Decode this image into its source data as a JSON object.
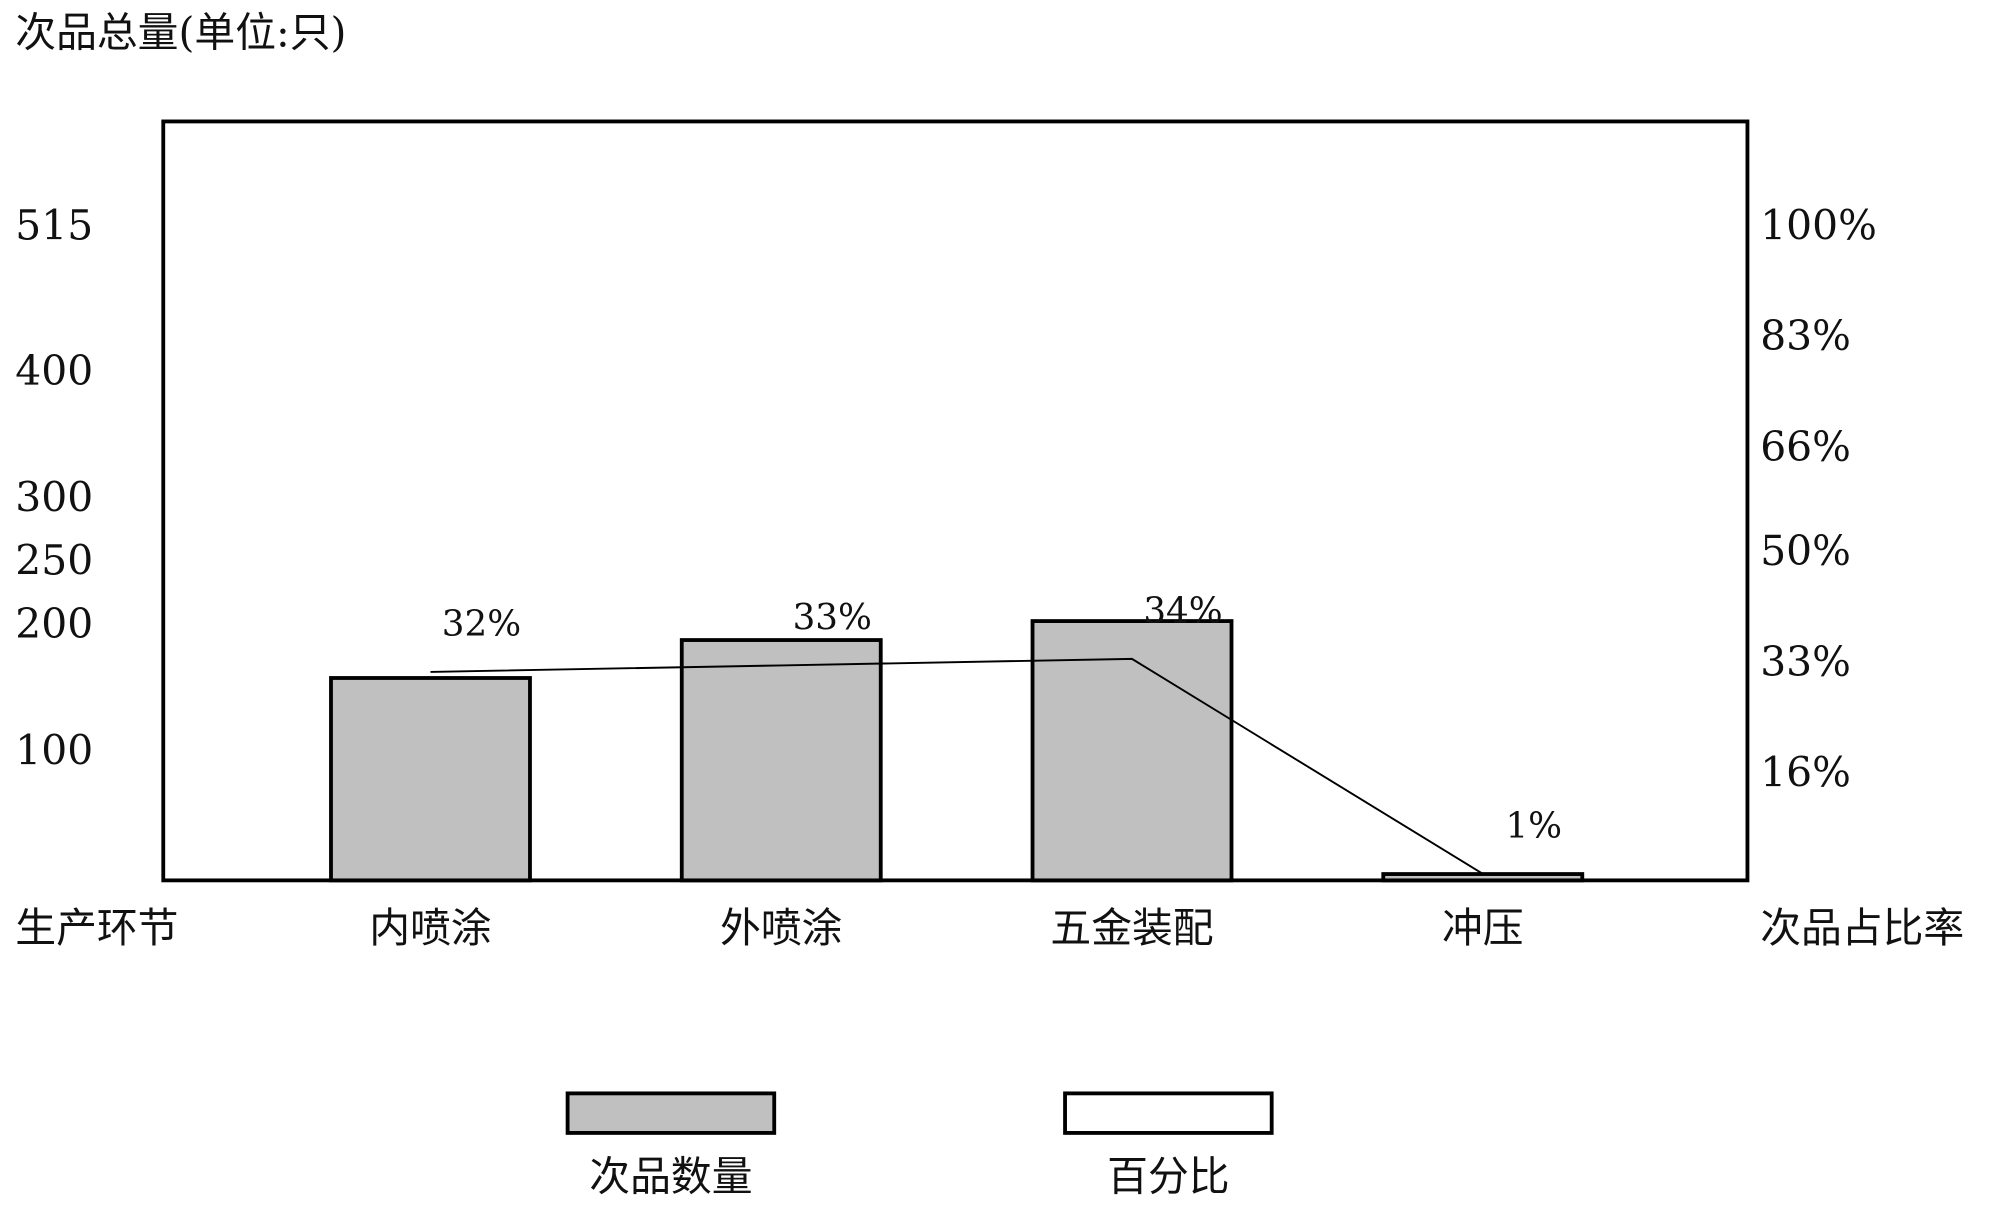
{
  "chart_data": {
    "type": "bar",
    "y_label": "次品总量(单位:只)",
    "x_label": "生产环节",
    "y2_label": "次品占比率",
    "categories": [
      "内喷涂",
      "外喷涂",
      "五金装配",
      "冲压"
    ],
    "series": [
      {
        "name": "次品数量",
        "type": "bar",
        "color": "#c0c0c0",
        "values": [
          160,
          190,
          205,
          5
        ]
      },
      {
        "name": "百分比",
        "type": "line",
        "axis": "y2",
        "color": "#000000",
        "values": [
          32,
          33,
          34,
          1
        ],
        "value_labels": [
          "32%",
          "33%",
          "34%",
          "1%"
        ]
      }
    ],
    "ylim": [
      0,
      600
    ],
    "yticks": [
      100,
      200,
      250,
      300,
      400,
      515
    ],
    "y2lim": [
      0,
      116.5
    ],
    "y2ticks": [
      {
        "value": 16,
        "label": "16%"
      },
      {
        "value": 33,
        "label": "33%"
      },
      {
        "value": 50,
        "label": "50%"
      },
      {
        "value": 66,
        "label": "66%"
      },
      {
        "value": 83,
        "label": "83%"
      },
      {
        "value": 100,
        "label": "100%"
      }
    ],
    "grid": false
  }
}
